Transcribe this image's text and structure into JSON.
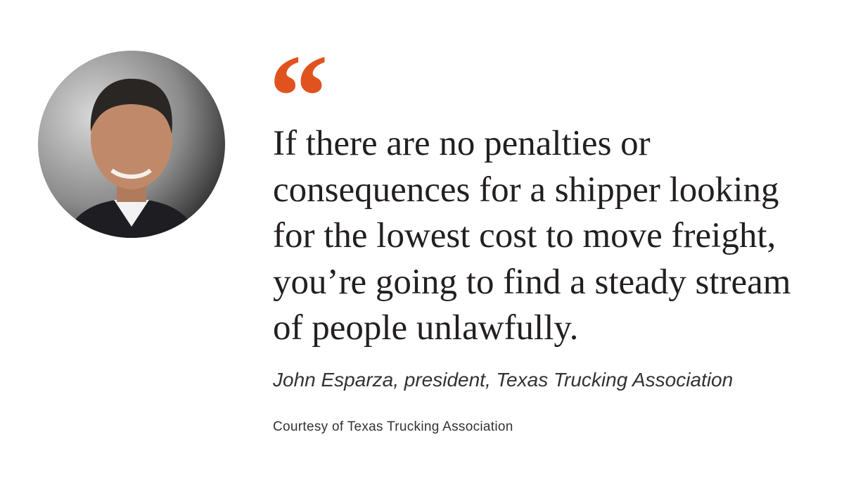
{
  "quote": {
    "mark": "“",
    "lines": [
      "If there are no penalties or",
      "consequences for a shipper looking",
      "for the lowest cost to move freight,",
      "you’re going to find a steady stream",
      "of people unlawfully."
    ],
    "attribution": "John Esparza, president, Texas Trucking Association",
    "credit": "Courtesy of Texas Trucking Association"
  }
}
